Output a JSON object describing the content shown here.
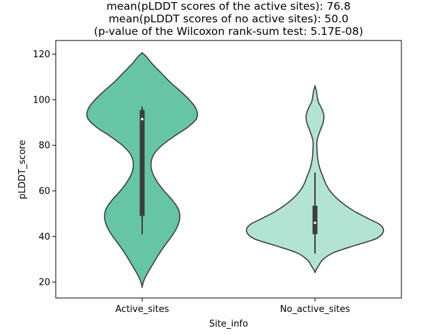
{
  "chart_data": {
    "type": "violin",
    "title_lines": [
      "mean(pLDDT scores of the active sites): 76.8",
      "mean(pLDDT scores of no active sites): 50.0",
      "(p-value of the Wilcoxon rank-sum test: 5.17E-08)"
    ],
    "xlabel": "Site_info",
    "ylabel": "pLDDT_score",
    "ylim": [
      13,
      126
    ],
    "yticks": [
      20,
      40,
      60,
      80,
      100,
      120
    ],
    "grid": false,
    "categories": [
      "Active_sites",
      "No_active_sites"
    ],
    "colors": [
      "#66c5a5",
      "#b2e3d3"
    ],
    "edge_color": "#3d3d3d",
    "violins": [
      {
        "category": "Active_sites",
        "density_profile": [
          [
            18,
            0.0
          ],
          [
            21,
            0.03
          ],
          [
            24,
            0.08
          ],
          [
            28,
            0.16
          ],
          [
            32,
            0.24
          ],
          [
            36,
            0.33
          ],
          [
            40,
            0.43
          ],
          [
            44,
            0.51
          ],
          [
            48,
            0.55
          ],
          [
            52,
            0.53
          ],
          [
            56,
            0.44
          ],
          [
            60,
            0.32
          ],
          [
            64,
            0.22
          ],
          [
            68,
            0.15
          ],
          [
            72,
            0.13
          ],
          [
            76,
            0.17
          ],
          [
            80,
            0.29
          ],
          [
            84,
            0.47
          ],
          [
            88,
            0.67
          ],
          [
            92,
            0.8
          ],
          [
            96,
            0.79
          ],
          [
            100,
            0.69
          ],
          [
            104,
            0.55
          ],
          [
            108,
            0.4
          ],
          [
            112,
            0.27
          ],
          [
            116,
            0.14
          ],
          [
            119,
            0.06
          ],
          [
            120.5,
            0.0
          ]
        ],
        "whisker_low": 41,
        "q1": 49,
        "median": 91.5,
        "q3": 95.5,
        "whisker_high": 97
      },
      {
        "category": "No_active_sites",
        "density_profile": [
          [
            24.5,
            0.0
          ],
          [
            27,
            0.05
          ],
          [
            30,
            0.12
          ],
          [
            33,
            0.28
          ],
          [
            36,
            0.58
          ],
          [
            39,
            0.89
          ],
          [
            42,
            1.0
          ],
          [
            45,
            0.96
          ],
          [
            48,
            0.77
          ],
          [
            51,
            0.58
          ],
          [
            54,
            0.43
          ],
          [
            57,
            0.31
          ],
          [
            60,
            0.22
          ],
          [
            63,
            0.16
          ],
          [
            66,
            0.12
          ],
          [
            70,
            0.07
          ],
          [
            74,
            0.04
          ],
          [
            78,
            0.03
          ],
          [
            82,
            0.03
          ],
          [
            86,
            0.07
          ],
          [
            90,
            0.12
          ],
          [
            93,
            0.13
          ],
          [
            96,
            0.1
          ],
          [
            99,
            0.05
          ],
          [
            102,
            0.03
          ],
          [
            104,
            0.02
          ],
          [
            106,
            0.0
          ]
        ],
        "whisker_low": 32.5,
        "q1": 41,
        "median": 46,
        "q3": 53.5,
        "whisker_high": 68
      }
    ]
  }
}
